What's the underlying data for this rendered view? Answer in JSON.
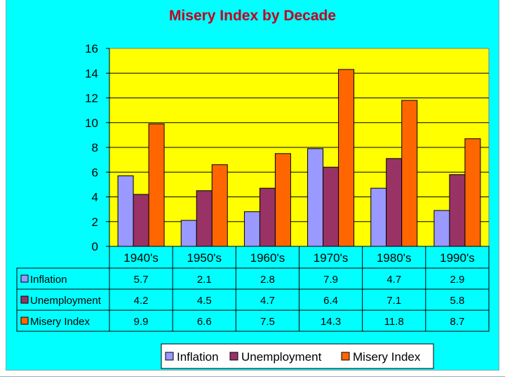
{
  "chart_data": {
    "type": "bar",
    "title": "Misery Index by Decade",
    "categories": [
      "1940's",
      "1950's",
      "1960's",
      "1970's",
      "1980's",
      "1990's"
    ],
    "series": [
      {
        "name": "Inflation",
        "values": [
          5.7,
          2.1,
          2.8,
          7.9,
          4.7,
          2.9
        ],
        "color": "#9999ff"
      },
      {
        "name": "Unemployment",
        "values": [
          4.2,
          4.5,
          4.7,
          6.4,
          7.1,
          5.8
        ],
        "color": "#993366"
      },
      {
        "name": "Misery Index",
        "values": [
          9.9,
          6.6,
          7.5,
          14.3,
          11.8,
          8.7
        ],
        "color": "#ff6600"
      }
    ],
    "table_values": [
      [
        "5.7",
        "2.1",
        "2.8",
        "7.9",
        "4.7",
        "2.9"
      ],
      [
        "4.2",
        "4.5",
        "4.7",
        "6.4",
        "7.1",
        "5.8"
      ],
      [
        "9.9",
        "6.6",
        "7.5",
        "14.3",
        "11.8",
        "8.7"
      ]
    ],
    "ylim": [
      0,
      16
    ],
    "yticks": [
      "0",
      "2",
      "4",
      "6",
      "8",
      "10",
      "12",
      "14",
      "16"
    ],
    "grid": true,
    "legend_position": "bottom",
    "data_table": true,
    "plot_background": "#ffff00",
    "page_background": "#00ffff"
  }
}
